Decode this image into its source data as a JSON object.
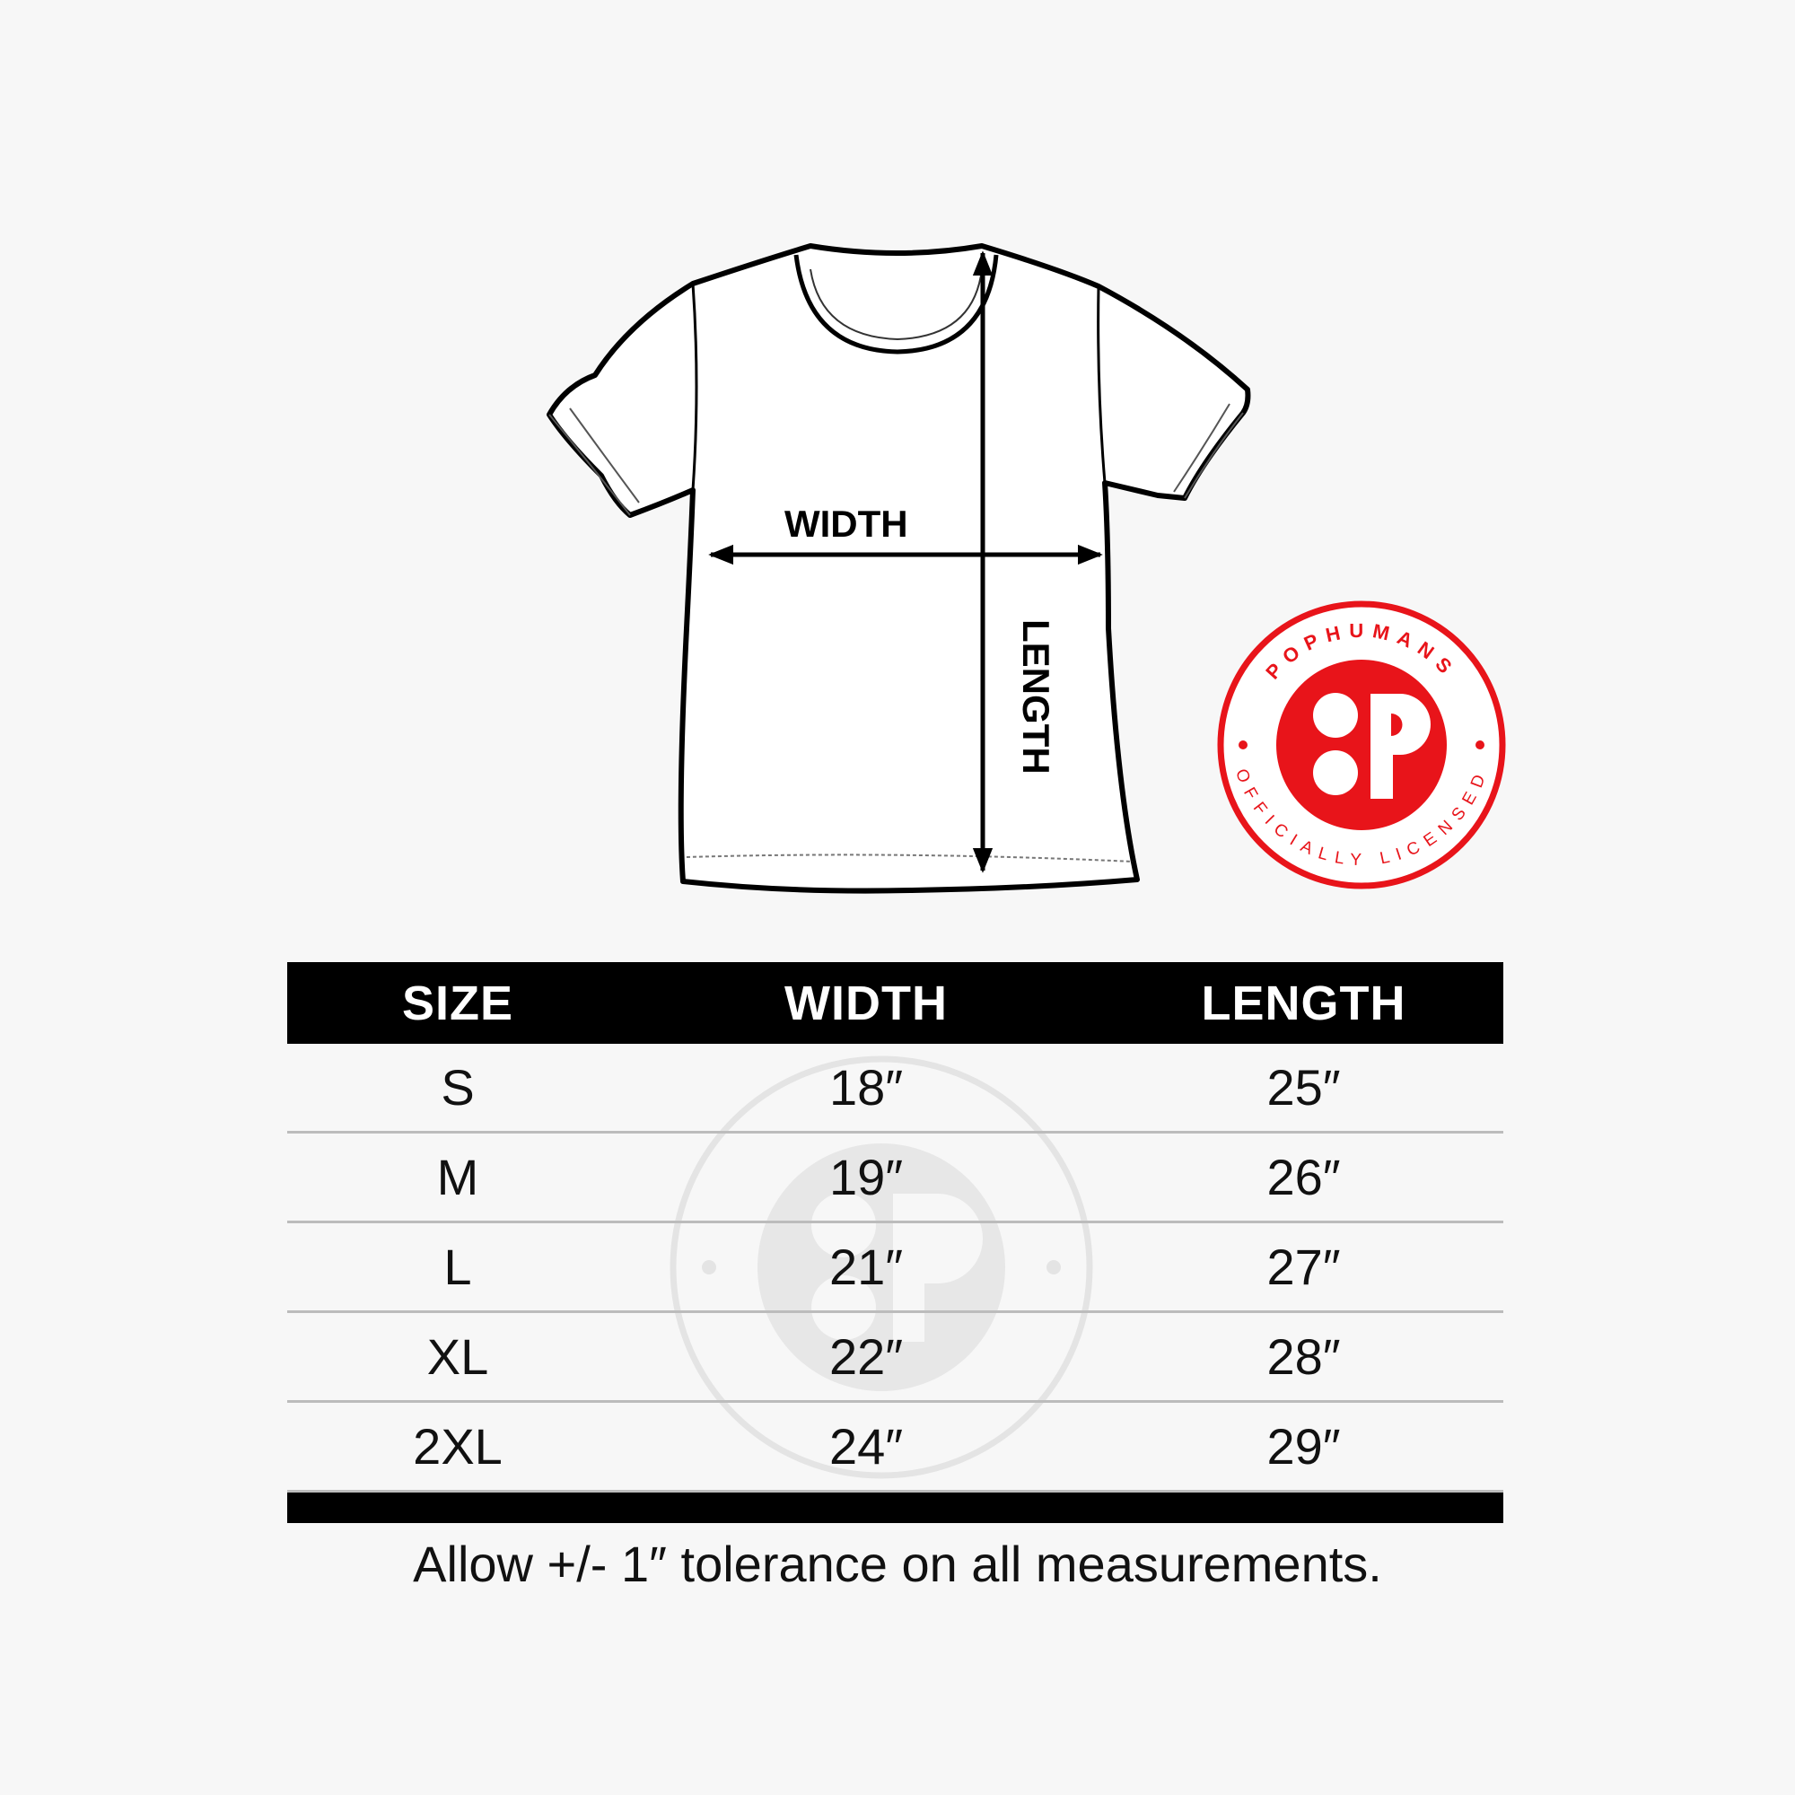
{
  "diagram": {
    "width_label": "WIDTH",
    "length_label": "LENGTH"
  },
  "badge": {
    "top_text": "POPHUMANS",
    "bottom_text": "OFFICIALLY LICENSED",
    "color": "#e8141a"
  },
  "table": {
    "headers": [
      "SIZE",
      "WIDTH",
      "LENGTH"
    ],
    "rows": [
      [
        "S",
        "18″",
        "25″"
      ],
      [
        "M",
        "19″",
        "26″"
      ],
      [
        "L",
        "21″",
        "27″"
      ],
      [
        "XL",
        "22″",
        "28″"
      ],
      [
        "2XL",
        "24″",
        "29″"
      ]
    ]
  },
  "footer": "Allow +/- 1″ tolerance on all measurements."
}
